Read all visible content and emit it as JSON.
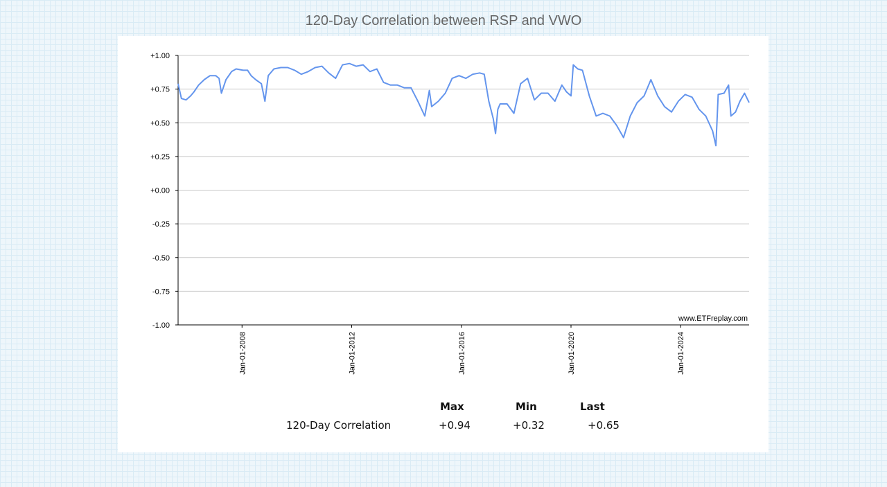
{
  "page": {
    "title": "120-Day Correlation between RSP and VWO",
    "watermark": "www.ETFreplay.com"
  },
  "chart_data": {
    "type": "line",
    "title": "120-Day Correlation between RSP and VWO",
    "ylim": [
      -1.0,
      1.0
    ],
    "y_ticks": [
      "+1.00",
      "+0.75",
      "+0.50",
      "+0.25",
      "+0.00",
      "-0.25",
      "-0.50",
      "-0.75",
      "-1.00"
    ],
    "x_ticks": [
      "Jan-01-2008",
      "Jan-01-2012",
      "Jan-01-2016",
      "Jan-01-2020",
      "Jan-01-2024"
    ],
    "xlim": [
      "2005-09-01",
      "2026-07-01"
    ],
    "grid": true,
    "line_color": "#6495ed",
    "series": [
      {
        "points": [
          [
            "2005-09-01",
            0.79
          ],
          [
            "2005-10-15",
            0.68
          ],
          [
            "2005-12-15",
            0.67
          ],
          [
            "2006-02-15",
            0.7
          ],
          [
            "2006-04-01",
            0.73
          ],
          [
            "2006-06-01",
            0.78
          ],
          [
            "2006-08-15",
            0.82
          ],
          [
            "2006-11-01",
            0.85
          ],
          [
            "2007-01-15",
            0.85
          ],
          [
            "2007-03-01",
            0.83
          ],
          [
            "2007-04-01",
            0.72
          ],
          [
            "2007-06-01",
            0.82
          ],
          [
            "2007-08-15",
            0.88
          ],
          [
            "2007-10-15",
            0.9
          ],
          [
            "2008-01-15",
            0.89
          ],
          [
            "2008-03-15",
            0.89
          ],
          [
            "2008-05-01",
            0.85
          ],
          [
            "2008-07-01",
            0.82
          ],
          [
            "2008-09-15",
            0.79
          ],
          [
            "2008-11-01",
            0.66
          ],
          [
            "2008-12-15",
            0.85
          ],
          [
            "2009-03-01",
            0.9
          ],
          [
            "2009-06-01",
            0.91
          ],
          [
            "2009-09-01",
            0.91
          ],
          [
            "2009-12-01",
            0.89
          ],
          [
            "2010-03-01",
            0.86
          ],
          [
            "2010-06-01",
            0.88
          ],
          [
            "2010-09-01",
            0.91
          ],
          [
            "2010-12-01",
            0.92
          ],
          [
            "2011-03-01",
            0.87
          ],
          [
            "2011-06-01",
            0.83
          ],
          [
            "2011-09-01",
            0.93
          ],
          [
            "2011-12-01",
            0.94
          ],
          [
            "2012-03-01",
            0.92
          ],
          [
            "2012-06-01",
            0.93
          ],
          [
            "2012-09-01",
            0.88
          ],
          [
            "2012-12-01",
            0.9
          ],
          [
            "2013-03-01",
            0.8
          ],
          [
            "2013-06-01",
            0.78
          ],
          [
            "2013-09-01",
            0.78
          ],
          [
            "2013-12-01",
            0.76
          ],
          [
            "2014-03-01",
            0.76
          ],
          [
            "2014-06-01",
            0.66
          ],
          [
            "2014-09-01",
            0.55
          ],
          [
            "2014-11-01",
            0.74
          ],
          [
            "2014-12-01",
            0.62
          ],
          [
            "2015-03-01",
            0.66
          ],
          [
            "2015-06-01",
            0.72
          ],
          [
            "2015-09-01",
            0.83
          ],
          [
            "2015-12-01",
            0.85
          ],
          [
            "2016-03-01",
            0.83
          ],
          [
            "2016-06-01",
            0.86
          ],
          [
            "2016-09-01",
            0.87
          ],
          [
            "2016-11-01",
            0.86
          ],
          [
            "2017-01-01",
            0.66
          ],
          [
            "2017-03-01",
            0.53
          ],
          [
            "2017-04-01",
            0.42
          ],
          [
            "2017-05-01",
            0.6
          ],
          [
            "2017-06-01",
            0.64
          ],
          [
            "2017-09-01",
            0.64
          ],
          [
            "2017-12-01",
            0.57
          ],
          [
            "2018-03-01",
            0.79
          ],
          [
            "2018-06-01",
            0.83
          ],
          [
            "2018-09-01",
            0.67
          ],
          [
            "2018-12-01",
            0.72
          ],
          [
            "2019-03-01",
            0.72
          ],
          [
            "2019-06-01",
            0.66
          ],
          [
            "2019-09-01",
            0.78
          ],
          [
            "2019-11-01",
            0.73
          ],
          [
            "2020-01-01",
            0.7
          ],
          [
            "2020-02-01",
            0.93
          ],
          [
            "2020-04-01",
            0.9
          ],
          [
            "2020-06-01",
            0.89
          ],
          [
            "2020-09-01",
            0.7
          ],
          [
            "2020-12-01",
            0.55
          ],
          [
            "2021-03-01",
            0.57
          ],
          [
            "2021-06-01",
            0.55
          ],
          [
            "2021-09-01",
            0.48
          ],
          [
            "2021-12-01",
            0.39
          ],
          [
            "2022-03-01",
            0.55
          ],
          [
            "2022-06-01",
            0.65
          ],
          [
            "2022-09-01",
            0.7
          ],
          [
            "2022-12-01",
            0.82
          ],
          [
            "2023-03-01",
            0.7
          ],
          [
            "2023-06-01",
            0.62
          ],
          [
            "2023-09-01",
            0.58
          ],
          [
            "2023-12-01",
            0.66
          ],
          [
            "2024-03-01",
            0.71
          ],
          [
            "2024-06-01",
            0.69
          ],
          [
            "2024-09-01",
            0.6
          ],
          [
            "2024-12-01",
            0.55
          ],
          [
            "2025-03-01",
            0.44
          ],
          [
            "2025-04-15",
            0.33
          ],
          [
            "2025-05-15",
            0.71
          ],
          [
            "2025-08-01",
            0.72
          ],
          [
            "2025-10-01",
            0.78
          ],
          [
            "2025-11-01",
            0.55
          ],
          [
            "2026-01-01",
            0.58
          ],
          [
            "2026-03-01",
            0.66
          ],
          [
            "2026-05-01",
            0.72
          ],
          [
            "2026-07-01",
            0.65
          ]
        ]
      }
    ]
  },
  "stats": {
    "headers": [
      "Max",
      "Min",
      "Last"
    ],
    "row_label": "120-Day Correlation",
    "values": [
      "+0.94",
      "+0.32",
      "+0.65"
    ]
  }
}
